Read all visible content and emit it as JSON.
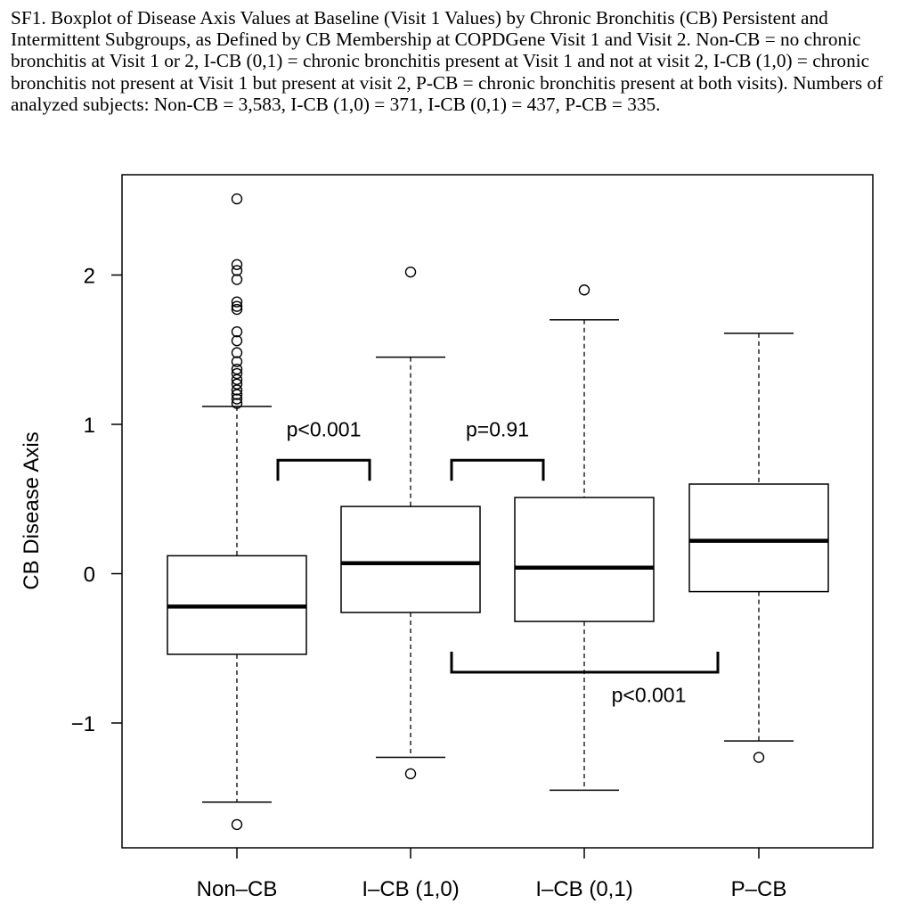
{
  "caption": "SF1. Boxplot of Disease Axis Values at Baseline (Visit 1 Values) by Chronic Bronchitis (CB) Persistent and Intermittent Subgroups, as Defined by CB Membership at COPDGene Visit 1 and Visit 2. Non-CB = no chronic bronchitis at Visit 1 or 2, I-CB (0,1) = chronic bronchitis present at Visit 1 and not at visit 2, I-CB (1,0) = chronic bronchitis not present at Visit 1 but present at visit 2, P-CB = chronic bronchitis present at both visits). Numbers of analyzed subjects: Non-CB = 3,583, I-CB (1,0) = 371, I-CB (0,1) = 437, P-CB = 335.",
  "chart_data": {
    "type": "boxplot",
    "title": "",
    "xlabel": "",
    "ylabel": "CB Disease Axis",
    "ylim": [
      -1.85,
      2.7
    ],
    "yticks": [
      -1,
      0,
      1,
      2
    ],
    "ytick_labels": [
      "−1",
      "0",
      "1",
      "2"
    ],
    "categories": [
      "Non–CB",
      "I–CB (1,0)",
      "I–CB (0,1)",
      "P–CB"
    ],
    "boxes": [
      {
        "name": "Non-CB",
        "whisker_low": -1.53,
        "q1": -0.54,
        "median": -0.22,
        "q3": 0.12,
        "whisker_high": 1.12,
        "outliers": [
          2.51,
          2.07,
          2.03,
          1.97,
          1.82,
          1.79,
          1.77,
          1.62,
          1.56,
          1.48,
          1.42,
          1.37,
          1.34,
          1.3,
          1.27,
          1.23,
          1.2,
          1.17,
          1.14,
          -1.68
        ]
      },
      {
        "name": "I-CB (1,0)",
        "whisker_low": -1.23,
        "q1": -0.26,
        "median": 0.07,
        "q3": 0.45,
        "whisker_high": 1.45,
        "outliers": [
          2.02,
          -1.34
        ]
      },
      {
        "name": "I-CB (0,1)",
        "whisker_low": -1.45,
        "q1": -0.32,
        "median": 0.04,
        "q3": 0.51,
        "whisker_high": 1.7,
        "outliers": [
          1.9
        ]
      },
      {
        "name": "P-CB",
        "whisker_low": -1.12,
        "q1": -0.12,
        "median": 0.22,
        "q3": 0.6,
        "whisker_high": 1.61,
        "outliers": [
          -1.23
        ]
      }
    ],
    "annotations": [
      {
        "label": "p<0.001",
        "from": 0,
        "to": 1,
        "y": 0.76,
        "text_y": 0.92,
        "direction": "down"
      },
      {
        "label": "p=0.91",
        "from": 1,
        "to": 2,
        "y": 0.76,
        "text_y": 0.92,
        "direction": "down"
      },
      {
        "label": "p<0.001",
        "from": 1,
        "to": 3,
        "y": -0.66,
        "text_y": -0.86,
        "direction": "up"
      }
    ]
  }
}
